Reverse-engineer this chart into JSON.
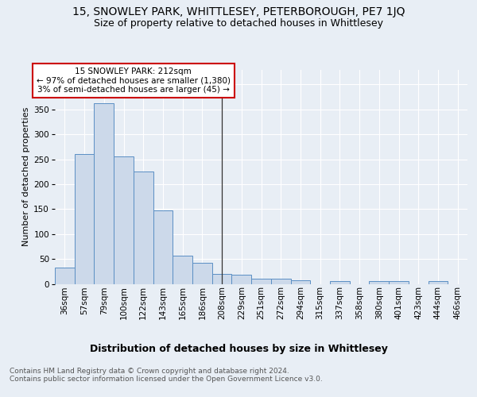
{
  "title1": "15, SNOWLEY PARK, WHITTLESEY, PETERBOROUGH, PE7 1JQ",
  "title2": "Size of property relative to detached houses in Whittlesey",
  "xlabel": "Distribution of detached houses by size in Whittlesey",
  "ylabel": "Number of detached properties",
  "categories": [
    "36sqm",
    "57sqm",
    "79sqm",
    "100sqm",
    "122sqm",
    "143sqm",
    "165sqm",
    "186sqm",
    "208sqm",
    "229sqm",
    "251sqm",
    "272sqm",
    "294sqm",
    "315sqm",
    "337sqm",
    "358sqm",
    "380sqm",
    "401sqm",
    "423sqm",
    "444sqm",
    "466sqm"
  ],
  "values": [
    32,
    260,
    362,
    256,
    225,
    148,
    57,
    43,
    20,
    19,
    11,
    10,
    7,
    0,
    6,
    0,
    5,
    5,
    0,
    5,
    0
  ],
  "bar_color": "#ccd9ea",
  "bar_edge_color": "#5b8fc4",
  "property_line_x": 8,
  "annotation_text": "15 SNOWLEY PARK: 212sqm\n← 97% of detached houses are smaller (1,380)\n3% of semi-detached houses are larger (45) →",
  "annotation_box_color": "#ffffff",
  "annotation_box_edge": "#cc0000",
  "vline_color": "#333333",
  "ylim": [
    0,
    430
  ],
  "yticks": [
    0,
    50,
    100,
    150,
    200,
    250,
    300,
    350,
    400,
    450
  ],
  "footer_text": "Contains HM Land Registry data © Crown copyright and database right 2024.\nContains public sector information licensed under the Open Government Licence v3.0.",
  "bg_color": "#e8eef5",
  "plot_bg_color": "#e8eef5",
  "grid_color": "#ffffff",
  "title1_fontsize": 10,
  "title2_fontsize": 9,
  "xlabel_fontsize": 9,
  "ylabel_fontsize": 8,
  "tick_fontsize": 7.5
}
